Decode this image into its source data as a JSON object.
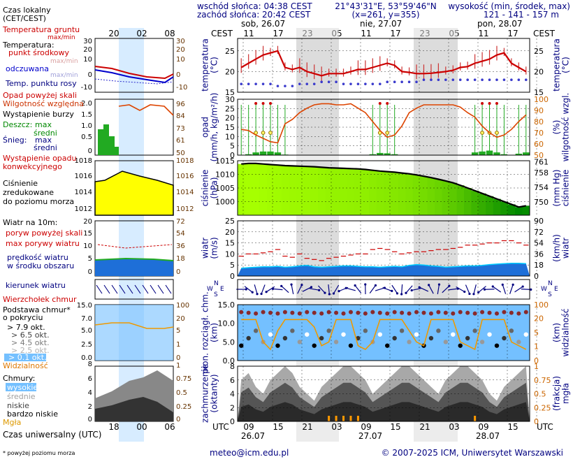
{
  "header": {
    "sunrise": "wschód słońca: 04:38 CEST",
    "sunset": "zachód słońca: 20:42 CEST",
    "coords": "21°43'31\"E, 53°59'46\"N",
    "grid": "(x=261, y=355)",
    "height_title": "wysokość (min, środek, max)",
    "heights": "121 - 141 - 157 m"
  },
  "days": [
    {
      "label": "sob, 26.07"
    },
    {
      "label": "nie, 27.07"
    },
    {
      "label": "pon, 28.07"
    }
  ],
  "time": {
    "cest_label": "CEST",
    "utc_label": "UTC",
    "cest_ticks": [
      "11",
      "17",
      "23",
      "05",
      "11",
      "17",
      "23",
      "05",
      "11",
      "17"
    ],
    "utc_ticks": [
      "09",
      "15",
      "21",
      "03",
      "09",
      "15",
      "21",
      "03",
      "09",
      "15"
    ],
    "utc_dates": [
      "26.07",
      "27.07",
      "28.07"
    ],
    "local_ticks": [
      "20",
      "02",
      "08"
    ],
    "utc_small_ticks": [
      "18",
      "00",
      "06"
    ]
  },
  "legend": {
    "local_time": "Czas lokalny\n(CET/CEST)",
    "utc_time": "Czas uniwersalny (UTC)",
    "footnote": "* powyżej poziomu morza",
    "temp_ground": "Temperatura gruntu",
    "temp_ground_mm": "max/min",
    "temperature": "Temperatura:",
    "temp_mid": "punkt środkowy",
    "temp_maxmin": "max/min",
    "temp_felt": "odczuwana",
    "temp_felt_mm": "max/min",
    "dewpoint": "Temp. punktu rosy",
    "precip_above": "Opad powyżej skali",
    "humidity": "Wilgotność względna",
    "storm": "Wystąpienie burzy",
    "rain": "Deszcz:",
    "rain_max": "max",
    "rain_mean": "średni",
    "snow": "Śnieg:",
    "snow_max": "max",
    "snow_mean": "średni",
    "precip_occ1": "Wystąpienie opadu",
    "precip_occ2": "konwekcyjnego",
    "pressure1": "Ciśnienie",
    "pressure2": "zredukowane",
    "pressure3": "do poziomu morza",
    "wind10": "Wiatr na 10m:",
    "gust_above": "poryw powyżej skali",
    "gust_max": "max porywy wiatru",
    "wind_mean1": "prędkość wiatru",
    "wind_mean2": "w środku obszaru",
    "wind_dir": "kierunek wiatru",
    "cb_top": "Wierzchołek chmur",
    "cloud_base1": "Podstawa chmur*",
    "cloud_base2": "o pokryciu",
    "okt1": "> 7.9 okt.",
    "okt2": "> 6.5 okt.",
    "okt3": "> 4.5 okt.",
    "okt4": "> 2.5 okt.",
    "okt5": "> 0.1 okt.",
    "visibility": "Widzialność",
    "clouds": "Chmury:",
    "cl_high": "wysokie",
    "cl_mid": "średnie",
    "cl_low": "niskie",
    "cl_vlow": "bardzo niskie",
    "fog": "Mgła"
  },
  "axes": {
    "temp_left": "temperatura\n(°C)",
    "temp_right": "temperatura\n(°C)",
    "precip_left": "opad\n(mm/h, kg/m²/h)",
    "precip_right": "(%)\nwilgotność wzgl.",
    "press_left": "ciśnienie\n(hPa)",
    "press_right": "(mm Hg)\nciśnienie",
    "wind_left": "wiatr\n(m/s)",
    "wind_right": "(km/h)\nwiatr",
    "cloud_left": "pion. rozciągł. chm.\n(km)",
    "cloud_right": "(km)\nwidzialność",
    "cover_left": "zachmurzenie\n(oktanty)",
    "cover_right": "(frakcja)\nmgła",
    "compass_n": "N",
    "compass_w": "W",
    "compass_s": "S",
    "compass_e": "E"
  },
  "footer": {
    "email": "meteo@icm.edu.pl",
    "copyright": "© 2007-2025 ICM, Uniwersytet Warszawski"
  },
  "colors": {
    "temp": "#cc0000",
    "dew": "#3a3acc",
    "humidity": "#dd4400",
    "orange_axis": "#cc6600",
    "navy": "#000080",
    "night_band": "#dcdcdc",
    "legend_blue": "#d7ecff",
    "pressure_low": "#008800",
    "pressure_high": "#a6ff00"
  },
  "chart_data": [
    {
      "type": "line",
      "name": "temperature",
      "x_start_utc": "2025-07-26T06:00Z",
      "x_step_hours": 2,
      "series": [
        {
          "name": "temperatura",
          "values": [
            21,
            22,
            23,
            24,
            24.5,
            25,
            21,
            20.5,
            21,
            20,
            19.5,
            19,
            19.5,
            19.5,
            19.5,
            20,
            20.5,
            20.5,
            21,
            21.5,
            22,
            21.5,
            20,
            19.8,
            19.5,
            19.5,
            19.6,
            19.8,
            20,
            20.3,
            21,
            21.2,
            22,
            22.5,
            23,
            24,
            24.5,
            22,
            21,
            20
          ]
        },
        {
          "name": "temperatura punktu rosy",
          "values": [
            17,
            17,
            17,
            17,
            17,
            16.5,
            16.5,
            16.5,
            17,
            17,
            17,
            17.5,
            17.5,
            17.5,
            17,
            17,
            17,
            17,
            17,
            17,
            17.5,
            17.5,
            17.5,
            17.5,
            17.5,
            18,
            18,
            18,
            18,
            18,
            18,
            18,
            18,
            18,
            18,
            18,
            18,
            18,
            18,
            18
          ]
        }
      ],
      "ylim": [
        15,
        28
      ]
    },
    {
      "type": "line",
      "name": "humidity",
      "series": [
        {
          "name": "wilgotność względna",
          "values": [
            73,
            72,
            68,
            65,
            62,
            61,
            78,
            82,
            88,
            92,
            95,
            96,
            96,
            95,
            95,
            96,
            92,
            88,
            80,
            72,
            66,
            68,
            76,
            88,
            92,
            95,
            95,
            95,
            95,
            95,
            93,
            88,
            84,
            76,
            70,
            66,
            68,
            73,
            80,
            86
          ]
        }
      ],
      "ylim": [
        50,
        100
      ]
    },
    {
      "type": "area",
      "name": "pressure",
      "series": [
        {
          "name": "ciśnienie",
          "values": [
            1013.8,
            1014,
            1014,
            1013.8,
            1013.6,
            1013.4,
            1013.2,
            1013.1,
            1013,
            1012.9,
            1012.8,
            1012.6,
            1012.4,
            1012.3,
            1012.2,
            1012.1,
            1012,
            1011.8,
            1011.5,
            1011.2,
            1011,
            1010.8,
            1010.5,
            1010.2,
            1009.8,
            1009.3,
            1008.8,
            1008.2,
            1007.6,
            1006.9,
            1006,
            1005,
            1004,
            1003,
            1002,
            1001,
            1000,
            999,
            998,
            998.5
          ]
        }
      ],
      "ylim": [
        995,
        1015
      ]
    },
    {
      "type": "line",
      "name": "wind",
      "series": [
        {
          "name": "prędkość wiatru",
          "values": [
            3.5,
            3.8,
            4,
            4.2,
            4.2,
            4.4,
            4,
            4.2,
            4.6,
            4.8,
            4.2,
            4,
            4.2,
            4.4,
            4.6,
            4.6,
            4.4,
            4.2,
            4.2,
            4,
            4.2,
            4.4,
            4.2,
            4.8,
            5.2,
            5,
            4.6,
            4.4,
            4,
            4.2,
            4.4,
            4.6,
            4.6,
            4.8,
            5.2,
            5.4,
            5.6,
            5.8,
            5.8,
            5.6
          ]
        },
        {
          "name": "porywy wiatru",
          "values": [
            9,
            10,
            10,
            10.5,
            11,
            12,
            9,
            8.5,
            10,
            8,
            7.5,
            7,
            8,
            8.5,
            9,
            9.5,
            10,
            10,
            12,
            12.5,
            12,
            11,
            10,
            10.5,
            11,
            11,
            11.5,
            12,
            12,
            12.5,
            13,
            14,
            14,
            14.5,
            15,
            15,
            16,
            16,
            15,
            14
          ]
        }
      ],
      "ylim": [
        0,
        25
      ]
    },
    {
      "type": "bar",
      "name": "precipitation",
      "series": [
        {
          "name": "opad",
          "values": [
            0.2,
            0.5,
            1.5,
            2,
            2,
            1.5,
            0.3,
            0,
            0,
            0,
            0,
            0,
            0,
            0,
            0,
            0,
            0,
            0,
            0.5,
            1.2,
            1,
            0.5,
            0,
            0,
            0,
            0,
            0,
            0,
            0,
            0,
            0,
            0,
            1.5,
            2,
            2.5,
            1.5,
            0.5,
            0,
            0.8,
            1.5
          ]
        }
      ],
      "ylim": [
        0,
        30
      ]
    },
    {
      "type": "area",
      "name": "clouds",
      "series": [
        {
          "name": "zachmurzenie",
          "values": [
            6,
            7,
            5,
            4,
            6,
            7,
            8,
            7,
            5,
            4,
            3,
            5,
            6,
            7,
            8,
            8,
            7,
            6,
            4,
            5,
            6,
            7,
            8,
            8,
            7,
            6,
            5,
            4,
            6,
            7,
            8,
            8,
            7,
            6,
            4,
            3,
            5,
            6,
            7,
            8
          ]
        }
      ],
      "ylim": [
        0,
        8
      ]
    }
  ]
}
